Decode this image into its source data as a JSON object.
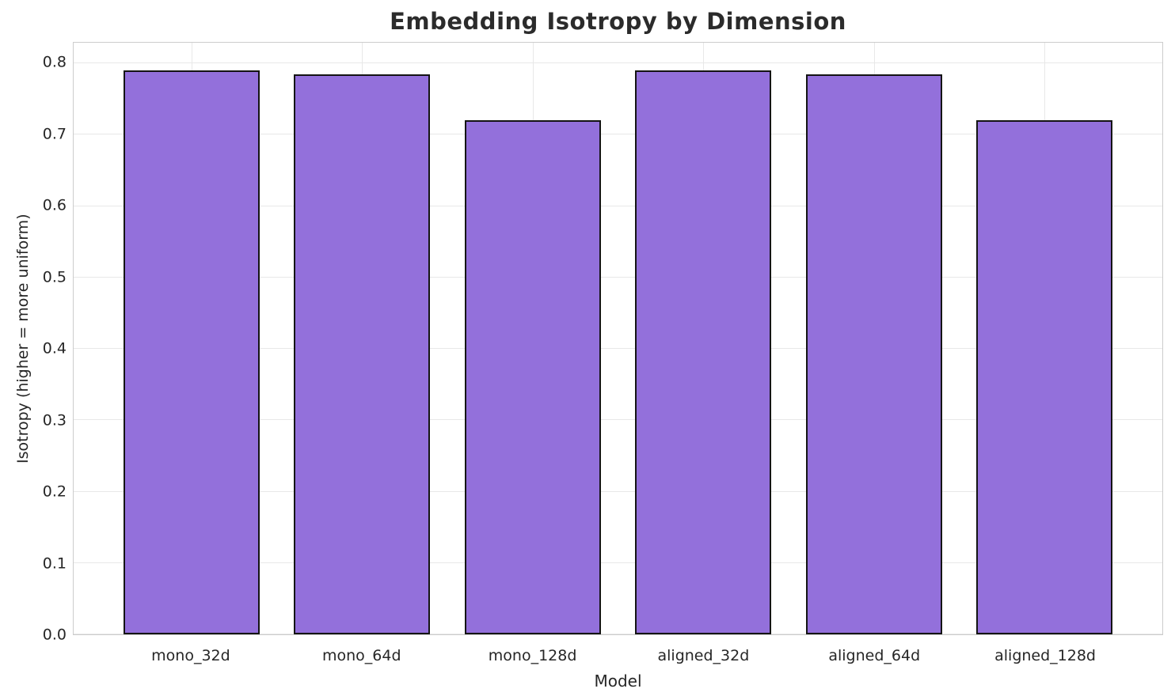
{
  "chart_data": {
    "type": "bar",
    "title": "Embedding Isotropy by Dimension",
    "xlabel": "Model",
    "ylabel": "Isotropy (higher = more uniform)",
    "categories": [
      "mono_32d",
      "mono_64d",
      "mono_128d",
      "aligned_32d",
      "aligned_64d",
      "aligned_128d"
    ],
    "values": [
      0.79,
      0.785,
      0.72,
      0.79,
      0.785,
      0.72
    ],
    "yticks": [
      0.0,
      0.1,
      0.2,
      0.3,
      0.4,
      0.5,
      0.6,
      0.7,
      0.8
    ],
    "ylim": [
      0,
      0.829
    ],
    "grid": true,
    "legend": "none",
    "colors": {
      "bar_fill": "#9370DB",
      "bar_edge": "#141414",
      "grid_line": "#e8e8e8",
      "spine": "#cccccc",
      "title_text": "#2b2b2b",
      "tick_text": "#262626",
      "background": "#ffffff"
    }
  }
}
